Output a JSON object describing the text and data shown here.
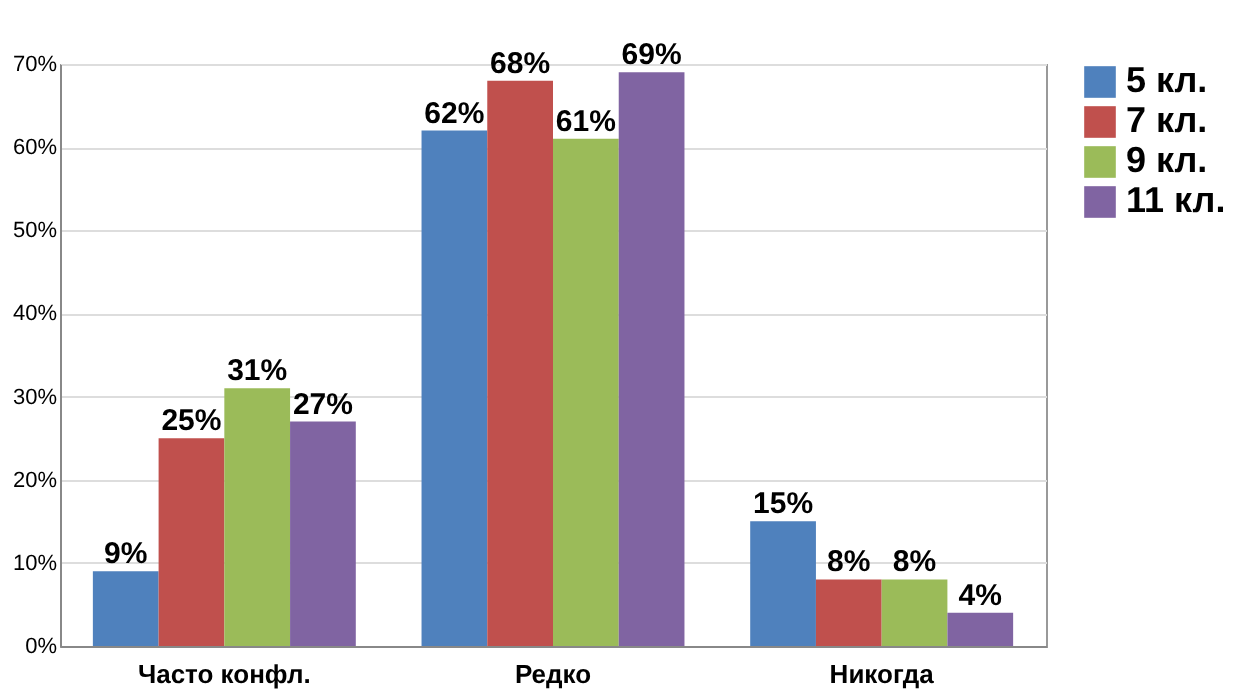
{
  "chart_data": {
    "type": "bar",
    "categories": [
      "Часто конфл.",
      "Редко",
      "Никогда"
    ],
    "series": [
      {
        "name": "5 кл.",
        "color": "#4f81bd",
        "values": [
          9,
          62,
          15
        ],
        "value_labels": [
          "9%",
          "62%",
          "15%"
        ]
      },
      {
        "name": "7 кл.",
        "color": "#c0504d",
        "values": [
          25,
          68,
          8
        ],
        "value_labels": [
          "25%",
          "68%",
          "8%"
        ]
      },
      {
        "name": "9 кл.",
        "color": "#9bbb59",
        "values": [
          31,
          61,
          8
        ],
        "value_labels": [
          "31%",
          "61%",
          "8%"
        ]
      },
      {
        "name": "11 кл.",
        "color": "#8064a2",
        "values": [
          27,
          69,
          4
        ],
        "value_labels": [
          "27%",
          "69%",
          "4%"
        ]
      }
    ],
    "ylim": [
      0,
      70
    ],
    "yticks": [
      {
        "value": 0,
        "label": "0%"
      },
      {
        "value": 10,
        "label": "10%"
      },
      {
        "value": 20,
        "label": "20%"
      },
      {
        "value": 30,
        "label": "30%"
      },
      {
        "value": 40,
        "label": "40%"
      },
      {
        "value": 50,
        "label": "50%"
      },
      {
        "value": 60,
        "label": "60%"
      },
      {
        "value": 70,
        "label": "70%"
      }
    ],
    "grid": "y",
    "legend": "right"
  }
}
